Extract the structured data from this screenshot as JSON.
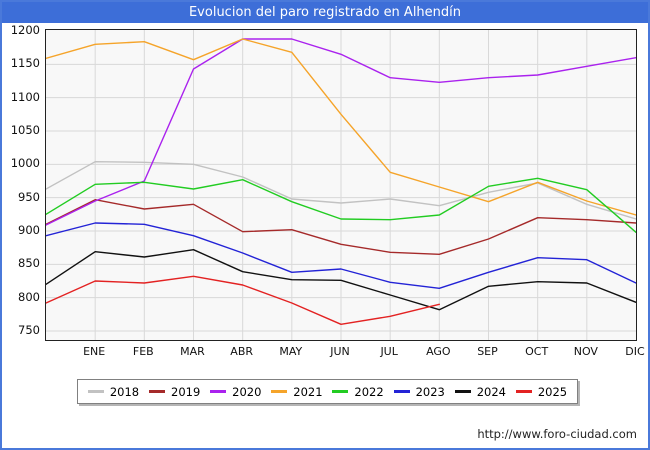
{
  "title": "Evolucion del paro registrado en Alhendín",
  "footer": {
    "url": "http://www.foro-ciudad.com"
  },
  "colors": {
    "titlebar_bg": "#3d6ed8",
    "titlebar_text": "#ffffff",
    "window_border": "#4a79da",
    "plot_bg": "#f8f8f8",
    "gridline": "#d9d9d9",
    "frame": "#222222"
  },
  "chart_data": {
    "type": "line",
    "title": "Evolucion del paro registrado en Alhendín",
    "xlabel": "",
    "ylabel": "",
    "x_categories": [
      "ENE",
      "FEB",
      "MAR",
      "ABR",
      "MAY",
      "JUN",
      "JUL",
      "AGO",
      "SEP",
      "OCT",
      "NOV",
      "DIC"
    ],
    "y_ticks": [
      1200,
      1150,
      1100,
      1050,
      1000,
      950,
      900,
      850,
      800,
      750
    ],
    "ylim": [
      738,
      1203
    ],
    "grid": true,
    "legend_position": "bottom",
    "note": "Each series has a starting value at the left plot edge (before the ENE gridline). 2025 data ends at AGO.",
    "series": [
      {
        "name": "2018",
        "color": "#c2c2c2",
        "start": 963,
        "values": [
          1004,
          1003,
          1000,
          981,
          948,
          942,
          948,
          938,
          958,
          972,
          940,
          918
        ]
      },
      {
        "name": "2019",
        "color": "#a52a2a",
        "start": 910,
        "values": [
          947,
          933,
          940,
          899,
          902,
          880,
          868,
          865,
          888,
          920,
          917,
          912
        ]
      },
      {
        "name": "2020",
        "color": "#aa22ee",
        "start": 909,
        "values": [
          945,
          975,
          1143,
          1188,
          1188,
          1165,
          1130,
          1123,
          1130,
          1134,
          1147,
          1160
        ]
      },
      {
        "name": "2021",
        "color": "#f5a42a",
        "start": 1159,
        "values": [
          1180,
          1184,
          1157,
          1188,
          1168,
          1075,
          988,
          966,
          944,
          973,
          945,
          924
        ]
      },
      {
        "name": "2022",
        "color": "#22cc22",
        "start": 925,
        "values": [
          970,
          973,
          963,
          977,
          944,
          918,
          917,
          924,
          967,
          979,
          962,
          898
        ]
      },
      {
        "name": "2023",
        "color": "#2323d6",
        "start": 893,
        "values": [
          912,
          910,
          893,
          867,
          838,
          843,
          823,
          814,
          838,
          860,
          857,
          822
        ]
      },
      {
        "name": "2024",
        "color": "#111111",
        "start": 820,
        "values": [
          869,
          861,
          872,
          839,
          827,
          826,
          804,
          782,
          817,
          824,
          822,
          793
        ]
      },
      {
        "name": "2025",
        "color": "#e32222",
        "start": 792,
        "values": [
          825,
          822,
          832,
          819,
          792,
          760,
          772,
          790
        ]
      }
    ]
  }
}
